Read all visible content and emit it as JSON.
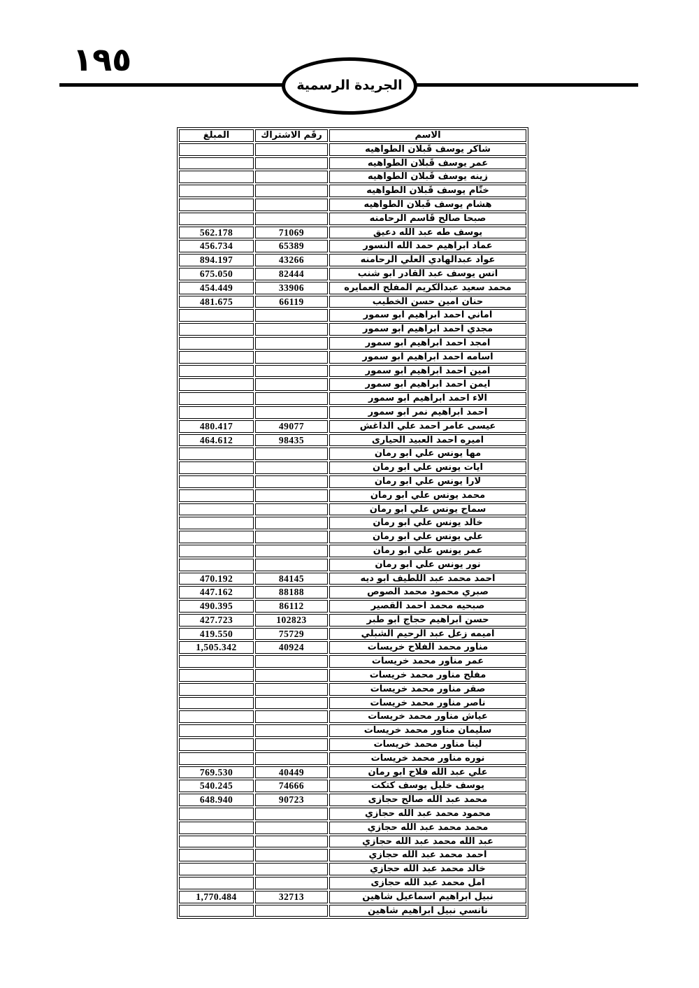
{
  "page": {
    "number_arabic": "١٩٥"
  },
  "header": {
    "gazette_title": "الجريدة الرسمية"
  },
  "table": {
    "columns": {
      "name": "الاسم",
      "subscription": "رقَم الاشتراك",
      "amount": "المبلغ"
    },
    "rows": [
      {
        "name": "شاكر يوسف قَبلان الطواهيه",
        "subscription": "",
        "amount": ""
      },
      {
        "name": "عمر يوسف قَبلان الطواهيه",
        "subscription": "",
        "amount": ""
      },
      {
        "name": "زينه يوسف قَبلان الطواهيه",
        "subscription": "",
        "amount": ""
      },
      {
        "name": "ختّام يوسف قَبلان الطواهيه",
        "subscription": "",
        "amount": ""
      },
      {
        "name": "هشام يوسف قَبلان الطواهيه",
        "subscription": "",
        "amount": ""
      },
      {
        "name": "صبحا صالح قَاسم الرحامنه",
        "subscription": "",
        "amount": ""
      },
      {
        "name": "يوسف طه عبد الله دعيق",
        "subscription": "71069",
        "amount": "562.178"
      },
      {
        "name": "عماد ابراهيم حمد الله النسور",
        "subscription": "65389",
        "amount": "456.734"
      },
      {
        "name": "عواد عبدالهادي العلي الرحامنه",
        "subscription": "43266",
        "amount": "894.197"
      },
      {
        "name": "انس يوسف عبد القادر ابو شنب",
        "subscription": "82444",
        "amount": "675.050"
      },
      {
        "name": "محمد سعيد عبدالكريم المفلح العمايره",
        "subscription": "33906",
        "amount": "454.449"
      },
      {
        "name": "حنان امين حسن الخطيب",
        "subscription": "66119",
        "amount": "481.675"
      },
      {
        "name": "اماني احمد ابراهيم ابو سمور",
        "subscription": "",
        "amount": ""
      },
      {
        "name": "مجدي احمد ابراهيم ابو سمور",
        "subscription": "",
        "amount": ""
      },
      {
        "name": "امجد احمد ابراهيم ابو سمور",
        "subscription": "",
        "amount": ""
      },
      {
        "name": "اسامه احمد ابراهيم ابو سمور",
        "subscription": "",
        "amount": ""
      },
      {
        "name": "امين احمد ابراهيم ابو سمور",
        "subscription": "",
        "amount": ""
      },
      {
        "name": "ايمن احمد ابراهيم ابو سمور",
        "subscription": "",
        "amount": ""
      },
      {
        "name": "الاء احمد ابراهيم ابو سمور",
        "subscription": "",
        "amount": ""
      },
      {
        "name": "احمد ابراهيم نمر ابو سمور",
        "subscription": "",
        "amount": ""
      },
      {
        "name": "عيسى عامر احمد علي الداغش",
        "subscription": "49077",
        "amount": "480.417"
      },
      {
        "name": "اميره احمد العبيد الحيارى",
        "subscription": "98435",
        "amount": "464.612"
      },
      {
        "name": "مها يونس علي ابو رمان",
        "subscription": "",
        "amount": ""
      },
      {
        "name": "ايات يونس علي ابو رمان",
        "subscription": "",
        "amount": ""
      },
      {
        "name": "لارا يونس علي ابو رمان",
        "subscription": "",
        "amount": ""
      },
      {
        "name": "محمد يونس علي ابو رمان",
        "subscription": "",
        "amount": ""
      },
      {
        "name": "سماح يونس علي ابو رمان",
        "subscription": "",
        "amount": ""
      },
      {
        "name": "خالد يونس علي ابو رمان",
        "subscription": "",
        "amount": ""
      },
      {
        "name": "علي يونس علي ابو رمان",
        "subscription": "",
        "amount": ""
      },
      {
        "name": "عمر يونس علي ابو رمان",
        "subscription": "",
        "amount": ""
      },
      {
        "name": "نور يونس علي ابو رمان",
        "subscription": "",
        "amount": ""
      },
      {
        "name": "احمد محمد عبد اللطيف ابو ديه",
        "subscription": "84145",
        "amount": "470.192"
      },
      {
        "name": "صبري محمود محمد الصوص",
        "subscription": "88188",
        "amount": "447.162"
      },
      {
        "name": "صبحيه محمد احمد القصير",
        "subscription": "86112",
        "amount": "490.395"
      },
      {
        "name": "حسن ابراهيم حجاج ابو طبر",
        "subscription": "102823",
        "amount": "427.723"
      },
      {
        "name": "اميمه زعل عبد الرحيم الشبلي",
        "subscription": "75729",
        "amount": "419.550"
      },
      {
        "name": "مناور محمد الفلاح خريسات",
        "subscription": "40924",
        "amount": "1,505.342"
      },
      {
        "name": "عمر مناور محمد خريسات",
        "subscription": "",
        "amount": ""
      },
      {
        "name": "مفلح مناور محمد خريسات",
        "subscription": "",
        "amount": ""
      },
      {
        "name": "صقر مناور محمد خريسات",
        "subscription": "",
        "amount": ""
      },
      {
        "name": "ناصر مناور محمد خريسات",
        "subscription": "",
        "amount": ""
      },
      {
        "name": "عياش مناور محمد خريسات",
        "subscription": "",
        "amount": ""
      },
      {
        "name": "سليمان مناور محمد خريسات",
        "subscription": "",
        "amount": ""
      },
      {
        "name": "لينا مناور محمد خريسات",
        "subscription": "",
        "amount": ""
      },
      {
        "name": "نوره مناور محمد خريسات",
        "subscription": "",
        "amount": ""
      },
      {
        "name": "علي عبد الله فلاح ابو رمان",
        "subscription": "40449",
        "amount": "769.530"
      },
      {
        "name": "يوسف خليل يوسف كتكت",
        "subscription": "74666",
        "amount": "540.245"
      },
      {
        "name": "محمد عبد الله صالح حجازى",
        "subscription": "90723",
        "amount": "648.940"
      },
      {
        "name": "محمود محمد عبد الله حجازي",
        "subscription": "",
        "amount": ""
      },
      {
        "name": "محمد محمد عبد الله حجازي",
        "subscription": "",
        "amount": ""
      },
      {
        "name": "عبد الله محمد عبد الله حجازي",
        "subscription": "",
        "amount": ""
      },
      {
        "name": "احمد محمد عبد الله حجازي",
        "subscription": "",
        "amount": ""
      },
      {
        "name": "خالد محمد عبد الله حجازي",
        "subscription": "",
        "amount": ""
      },
      {
        "name": "امل محمد عبد الله حجازى",
        "subscription": "",
        "amount": ""
      },
      {
        "name": "نبيل ابراهيم اسماعيل شاهين",
        "subscription": "32713",
        "amount": "1,770.484"
      },
      {
        "name": "نانسي نبيل ابراهيم شاهين",
        "subscription": "",
        "amount": ""
      }
    ]
  }
}
